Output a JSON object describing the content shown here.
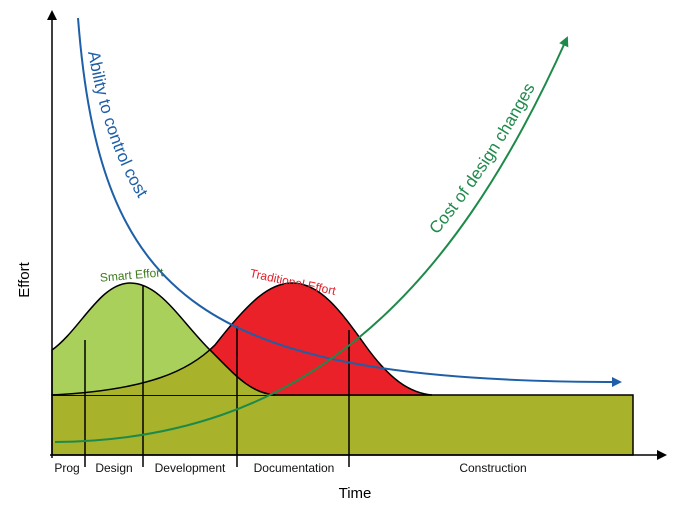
{
  "axes": {
    "y_label": "Effort",
    "x_label": "Time"
  },
  "curves": {
    "control": "Ability to control cost",
    "cost": "Cost of design changes",
    "smart": "Smart Effort",
    "traditional": "Traditional Effort"
  },
  "phases": [
    "Prog",
    "Design",
    "Development",
    "Documentation",
    "Construction"
  ]
}
